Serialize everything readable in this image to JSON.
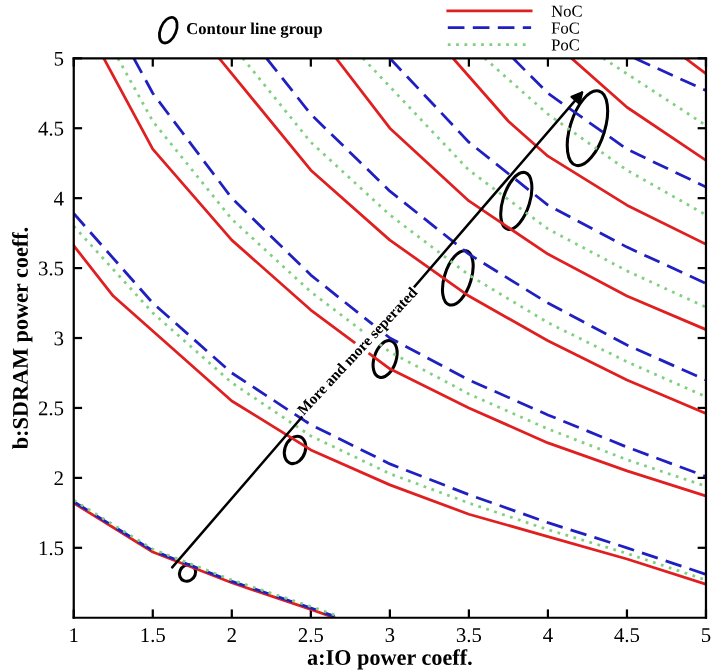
{
  "chart_data": {
    "type": "line",
    "xlabel": "a:IO power coeff.",
    "ylabel": "b:SDRAM power coeff.",
    "xlim": [
      1,
      5
    ],
    "ylim": [
      1,
      5
    ],
    "xticks": [
      1,
      1.5,
      2,
      2.5,
      3,
      3.5,
      4,
      4.5,
      5
    ],
    "yticks": [
      1.5,
      2,
      2.5,
      3,
      3.5,
      4,
      4.5,
      5
    ],
    "grid": false,
    "legend": "top right",
    "marker": "none",
    "annotations": [
      "Contour line group",
      "More and more seperated"
    ],
    "series": [
      {
        "name": "NoC",
        "color": "#e02020",
        "line_style": "solid",
        "x": [
          1,
          1.5,
          2,
          2.5,
          2.65
        ],
        "values": [
          1.82,
          1.47,
          1.25,
          1.06,
          1.0
        ]
      },
      {
        "name": "FoC",
        "color": "#2020c0",
        "line_style": "dashed",
        "x": [
          1,
          1.5,
          2,
          2.5,
          2.65
        ],
        "values": [
          1.83,
          1.48,
          1.26,
          1.07,
          1.01
        ]
      },
      {
        "name": "PoC",
        "color": "#80d080",
        "line_style": "dotted",
        "x": [
          1,
          1.5,
          2,
          2.5,
          2.65
        ],
        "values": [
          1.84,
          1.49,
          1.27,
          1.08,
          1.02
        ]
      },
      {
        "color": "#e02020",
        "line_style": "solid",
        "x": [
          1,
          1.25,
          1.5,
          2,
          2.5,
          3,
          3.5,
          4,
          4.5,
          5
        ],
        "values": [
          3.66,
          3.3,
          3.05,
          2.55,
          2.2,
          1.95,
          1.74,
          1.58,
          1.42,
          1.24
        ]
      },
      {
        "color": "#80d080",
        "line_style": "dotted",
        "x": [
          1,
          1.5,
          2,
          2.5,
          3,
          3.5,
          4,
          4.5,
          5
        ],
        "values": [
          3.8,
          3.18,
          2.68,
          2.3,
          2.03,
          1.82,
          1.63,
          1.46,
          1.27
        ]
      },
      {
        "color": "#2020c0",
        "line_style": "dashed",
        "x": [
          1,
          1.5,
          2,
          2.5,
          3,
          3.5,
          4,
          4.5,
          5
        ],
        "values": [
          3.89,
          3.25,
          2.75,
          2.38,
          2.1,
          1.88,
          1.68,
          1.5,
          1.31
        ]
      },
      {
        "color": "#e02020",
        "line_style": "solid",
        "x": [
          1.19,
          1.5,
          2,
          2.5,
          3,
          3.5,
          4,
          4.5,
          5
        ],
        "values": [
          5,
          4.35,
          3.7,
          3.2,
          2.78,
          2.5,
          2.25,
          2.05,
          1.87
        ]
      },
      {
        "color": "#80d080",
        "line_style": "dotted",
        "x": [
          1.28,
          1.5,
          2,
          2.5,
          3,
          3.5,
          4,
          4.5,
          5
        ],
        "values": [
          5,
          4.55,
          3.85,
          3.33,
          2.9,
          2.6,
          2.35,
          2.13,
          1.94
        ]
      },
      {
        "color": "#2020c0",
        "line_style": "dashed",
        "x": [
          1.38,
          1.5,
          2,
          2.5,
          3,
          3.5,
          4,
          4.5,
          5
        ],
        "values": [
          5,
          4.75,
          4.0,
          3.45,
          3.0,
          2.7,
          2.45,
          2.22,
          2.01
        ]
      },
      {
        "color": "#e02020",
        "line_style": "solid",
        "x": [
          1.92,
          2.5,
          3,
          3.5,
          4,
          4.5,
          5
        ],
        "values": [
          5,
          4.2,
          3.7,
          3.3,
          2.98,
          2.7,
          2.46
        ]
      },
      {
        "color": "#80d080",
        "line_style": "dotted",
        "x": [
          2.07,
          2.5,
          3,
          3.5,
          4,
          4.5,
          5
        ],
        "values": [
          5,
          4.4,
          3.88,
          3.45,
          3.11,
          2.83,
          2.58
        ]
      },
      {
        "color": "#2020c0",
        "line_style": "dashed",
        "x": [
          2.22,
          2.5,
          3,
          3.5,
          4,
          4.5,
          5
        ],
        "values": [
          5,
          4.6,
          4.05,
          3.6,
          3.25,
          2.95,
          2.7
        ]
      },
      {
        "color": "#e02020",
        "line_style": "solid",
        "x": [
          2.66,
          3,
          3.5,
          4,
          4.5,
          5
        ],
        "values": [
          5,
          4.5,
          3.98,
          3.6,
          3.3,
          3.06
        ]
      },
      {
        "color": "#80d080",
        "line_style": "dotted",
        "x": [
          2.83,
          3.5,
          4,
          4.5,
          5
        ],
        "values": [
          5,
          4.2,
          3.78,
          3.48,
          3.22
        ]
      },
      {
        "color": "#2020c0",
        "line_style": "dashed",
        "x": [
          3,
          3.5,
          4,
          4.5,
          5
        ],
        "values": [
          5,
          4.4,
          3.95,
          3.65,
          3.39
        ]
      },
      {
        "color": "#e02020",
        "line_style": "solid",
        "x": [
          3.4,
          3.75,
          4,
          4.5,
          5
        ],
        "values": [
          5,
          4.55,
          4.3,
          3.95,
          3.67
        ]
      },
      {
        "color": "#80d080",
        "line_style": "dotted",
        "x": [
          3.6,
          4,
          4.5,
          5
        ],
        "values": [
          5,
          4.6,
          4.2,
          3.88
        ]
      },
      {
        "color": "#2020c0",
        "line_style": "dashed",
        "x": [
          3.78,
          4,
          4.5,
          5
        ],
        "values": [
          5,
          4.75,
          4.35,
          4.08
        ]
      },
      {
        "color": "#e02020",
        "line_style": "solid",
        "x": [
          4.15,
          4.5,
          5
        ],
        "values": [
          5,
          4.65,
          4.27
        ]
      },
      {
        "color": "#80d080",
        "line_style": "dotted",
        "x": [
          4.35,
          5
        ],
        "values": [
          5,
          4.52
        ]
      },
      {
        "color": "#2020c0",
        "line_style": "dashed",
        "x": [
          4.55,
          5
        ],
        "values": [
          5,
          4.77
        ]
      },
      {
        "color": "#e02020",
        "line_style": "solid",
        "x": [
          4.87,
          5
        ],
        "values": [
          5,
          4.89
        ]
      }
    ]
  }
}
